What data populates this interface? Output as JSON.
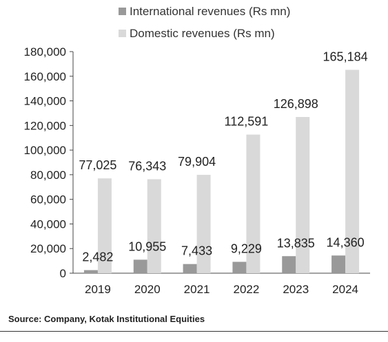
{
  "chart_data": {
    "type": "bar",
    "title": "",
    "xlabel": "",
    "ylabel": "",
    "categories": [
      "2019",
      "2020",
      "2021",
      "2022",
      "2023",
      "2024"
    ],
    "series": [
      {
        "name": "International revenues (Rs mn)",
        "values": [
          2482,
          10955,
          7433,
          9229,
          13835,
          14360
        ],
        "labels": [
          "2,482",
          "10,955",
          "7,433",
          "9,229",
          "13,835",
          "14,360"
        ],
        "color": "#999999"
      },
      {
        "name": "Domestic revenues (Rs mn)",
        "values": [
          77025,
          76343,
          79904,
          112591,
          126898,
          165184
        ],
        "labels": [
          "77,025",
          "76,343",
          "79,904",
          "112,591",
          "126,898",
          "165,184"
        ],
        "color": "#d9d9d9"
      }
    ],
    "ylim": [
      0,
      180000
    ],
    "yticks": [
      0,
      20000,
      40000,
      60000,
      80000,
      100000,
      120000,
      140000,
      160000,
      180000
    ],
    "ytick_labels": [
      "0",
      "20,000",
      "40,000",
      "60,000",
      "80,000",
      "100,000",
      "120,000",
      "140,000",
      "160,000",
      "180,000"
    ],
    "legend": "top",
    "grid": false
  },
  "source": "Source: Company, Kotak Institutional Equities"
}
